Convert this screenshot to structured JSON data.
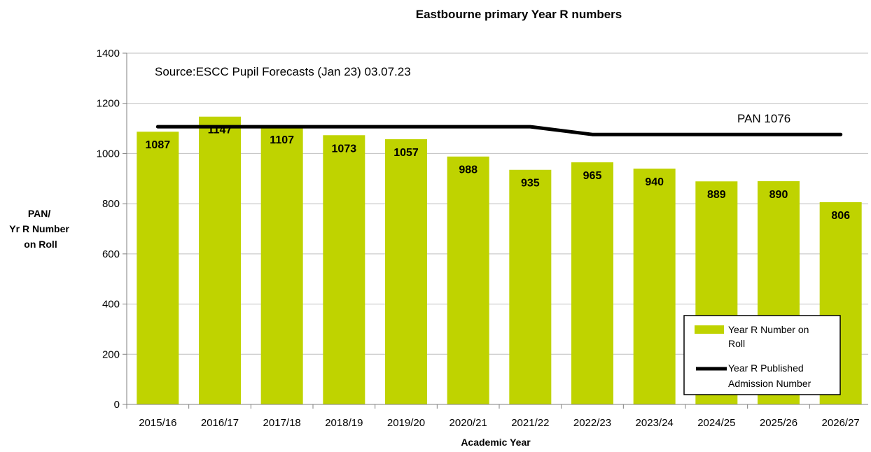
{
  "chart_data": {
    "type": "bar",
    "title": "Eastbourne primary Year R numbers",
    "xlabel": "Academic Year",
    "ylabel": [
      "PAN/",
      "Yr R Number",
      "on Roll"
    ],
    "ylim": [
      0,
      1400
    ],
    "yticks": [
      0,
      200,
      400,
      600,
      800,
      1000,
      1200,
      1400
    ],
    "categories": [
      "2015/16",
      "2016/17",
      "2017/18",
      "2018/19",
      "2019/20",
      "2020/21",
      "2021/22",
      "2022/23",
      "2023/24",
      "2024/25",
      "2025/26",
      "2026/27"
    ],
    "series": [
      {
        "name": "Year R Number on Roll",
        "type": "bar",
        "color": "#bfd300",
        "values": [
          1087,
          1147,
          1107,
          1073,
          1057,
          988,
          935,
          965,
          940,
          889,
          890,
          806
        ]
      },
      {
        "name": "Year R Published Admission Number",
        "type": "line",
        "color": "#000000",
        "values": [
          1107,
          1107,
          1107,
          1107,
          1107,
          1107,
          1107,
          1076,
          1076,
          1076,
          1076,
          1076
        ]
      }
    ],
    "annotations": {
      "source": "Source:ESCC Pupil Forecasts (Jan 23) 03.07.23",
      "pan_label": "PAN 1076"
    },
    "legend": {
      "placement": "bottom-right",
      "bar_lines": [
        "Year R Number on",
        "Roll"
      ],
      "line_lines": [
        "Year R Published",
        "Admission Number"
      ]
    },
    "grid": {
      "horizontal": true,
      "vertical": false,
      "color": "#bfbfbf"
    }
  }
}
